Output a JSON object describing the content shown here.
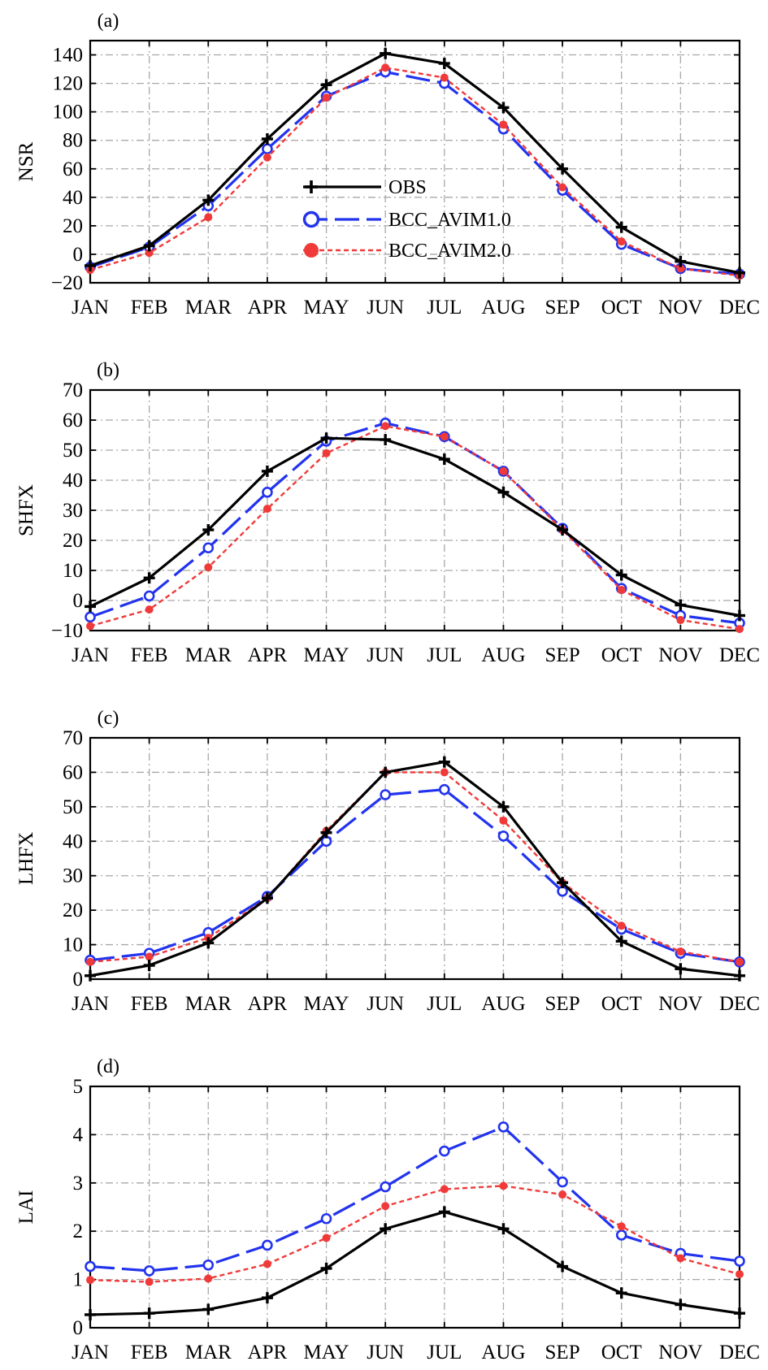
{
  "colors": {
    "obs": "#000000",
    "avim1": "#2233ee",
    "avim2": "#f03a3a",
    "grid": "#a8a8a8",
    "axis": "#000000"
  },
  "legend": {
    "items": [
      {
        "label": "OBS",
        "series": "obs"
      },
      {
        "label": "BCC_AVIM1.0",
        "series": "avim1"
      },
      {
        "label": "BCC_AVIM2.0",
        "series": "avim2"
      }
    ]
  },
  "chart_data": [
    {
      "type": "line",
      "panel_label": "(a)",
      "ylabel": "NSR",
      "xlabel": "",
      "categories": [
        "JAN",
        "FEB",
        "MAR",
        "APR",
        "MAY",
        "JUN",
        "JUL",
        "AUG",
        "SEP",
        "OCT",
        "NOV",
        "DEC"
      ],
      "ylim": [
        -20,
        150
      ],
      "yticks": [
        -20,
        0,
        20,
        40,
        60,
        80,
        100,
        120,
        140
      ],
      "grid": true,
      "legend_position": "center",
      "series": [
        {
          "name": "OBS",
          "key": "obs",
          "values": [
            -8,
            6,
            38,
            81,
            119,
            141,
            134,
            103,
            60,
            19,
            -5,
            -13
          ]
        },
        {
          "name": "BCC_AVIM1.0",
          "key": "avim1",
          "values": [
            -9,
            5,
            34,
            74,
            111,
            128,
            120,
            88,
            45,
            7,
            -10,
            -14
          ]
        },
        {
          "name": "BCC_AVIM2.0",
          "key": "avim2",
          "values": [
            -11,
            1,
            26,
            68,
            110,
            131,
            124,
            91,
            47,
            9,
            -10,
            -15
          ]
        }
      ]
    },
    {
      "type": "line",
      "panel_label": "(b)",
      "ylabel": "SHFX",
      "xlabel": "",
      "categories": [
        "JAN",
        "FEB",
        "MAR",
        "APR",
        "MAY",
        "JUN",
        "JUL",
        "AUG",
        "SEP",
        "OCT",
        "NOV",
        "DEC"
      ],
      "ylim": [
        -10,
        70
      ],
      "yticks": [
        -10,
        0,
        10,
        20,
        30,
        40,
        50,
        60,
        70
      ],
      "grid": true,
      "series": [
        {
          "name": "OBS",
          "key": "obs",
          "values": [
            -2,
            7.5,
            23.5,
            43,
            54,
            53.5,
            47,
            36,
            23.5,
            8.5,
            -1.5,
            -5
          ]
        },
        {
          "name": "BCC_AVIM1.0",
          "key": "avim1",
          "values": [
            -5.5,
            1.5,
            17.5,
            36,
            53,
            59,
            54.5,
            43,
            24,
            4,
            -5,
            -7.5
          ]
        },
        {
          "name": "BCC_AVIM2.0",
          "key": "avim2",
          "values": [
            -8.5,
            -3,
            11,
            30.5,
            49,
            58,
            54.5,
            43,
            23.5,
            3.5,
            -6.5,
            -9.5
          ]
        }
      ]
    },
    {
      "type": "line",
      "panel_label": "(c)",
      "ylabel": "LHFX",
      "xlabel": "",
      "categories": [
        "JAN",
        "FEB",
        "MAR",
        "APR",
        "MAY",
        "JUN",
        "JUL",
        "AUG",
        "SEP",
        "OCT",
        "NOV",
        "DEC"
      ],
      "ylim": [
        0,
        70
      ],
      "yticks": [
        0,
        10,
        20,
        30,
        40,
        50,
        60,
        70
      ],
      "grid": true,
      "series": [
        {
          "name": "OBS",
          "key": "obs",
          "values": [
            1,
            4,
            10.5,
            23.5,
            42.5,
            60,
            63,
            50,
            28,
            11,
            3,
            1
          ]
        },
        {
          "name": "BCC_AVIM1.0",
          "key": "avim1",
          "values": [
            5.5,
            7.5,
            13.5,
            24,
            40,
            53.5,
            55,
            41.5,
            25.5,
            14.5,
            7.5,
            5
          ]
        },
        {
          "name": "BCC_AVIM2.0",
          "key": "avim2",
          "values": [
            5,
            6.5,
            12,
            23.5,
            43,
            60,
            60,
            46,
            28,
            15.5,
            8,
            5
          ]
        }
      ]
    },
    {
      "type": "line",
      "panel_label": "(d)",
      "ylabel": "LAI",
      "xlabel": "",
      "categories": [
        "JAN",
        "FEB",
        "MAR",
        "APR",
        "MAY",
        "JUN",
        "JUL",
        "AUG",
        "SEP",
        "OCT",
        "NOV",
        "DEC"
      ],
      "ylim": [
        0,
        5
      ],
      "yticks": [
        0,
        1,
        2,
        3,
        4,
        5
      ],
      "grid": true,
      "series": [
        {
          "name": "OBS",
          "key": "obs",
          "values": [
            0.27,
            0.3,
            0.38,
            0.62,
            1.23,
            2.05,
            2.4,
            2.05,
            1.27,
            0.72,
            0.48,
            0.3
          ]
        },
        {
          "name": "BCC_AVIM1.0",
          "key": "avim1",
          "values": [
            1.27,
            1.18,
            1.3,
            1.71,
            2.26,
            2.92,
            3.66,
            4.16,
            3.02,
            1.92,
            1.54,
            1.38
          ]
        },
        {
          "name": "BCC_AVIM2.0",
          "key": "avim2",
          "values": [
            0.99,
            0.95,
            1.02,
            1.32,
            1.86,
            2.52,
            2.87,
            2.94,
            2.76,
            2.1,
            1.44,
            1.11
          ]
        }
      ]
    }
  ]
}
